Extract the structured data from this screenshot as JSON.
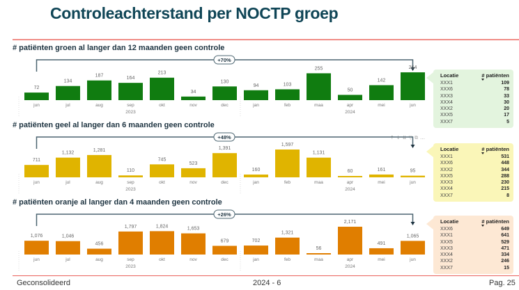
{
  "page": {
    "title": "Controleachterstand per NOCTP groep",
    "footer_left": "Geconsolideerd",
    "footer_center": "2024 - 6",
    "footer_right": "Pag. 25"
  },
  "toolbar_icons": [
    "arrow-up-icon",
    "arrow-down-icon",
    "expand-icon",
    "filter-icon",
    "focus-icon",
    "more-icon"
  ],
  "chart_data": [
    {
      "type": "bar",
      "title": "# patiënten groen al langer dan 12 maanden geen controle",
      "color": "#107c10",
      "categories": [
        "jun",
        "jul",
        "aug",
        "sep",
        "okt",
        "nov",
        "dec",
        "jan",
        "feb",
        "maa",
        "apr",
        "mei",
        "jun"
      ],
      "year_labels": [
        {
          "label": "2023",
          "under": "sep"
        },
        {
          "label": "2024",
          "under": "apr"
        }
      ],
      "values": [
        72,
        134,
        187,
        164,
        213,
        34,
        130,
        94,
        103,
        255,
        50,
        142,
        264
      ],
      "value_labels": [
        "72",
        "134",
        "187",
        "164",
        "213",
        "34",
        "130",
        "94",
        "103",
        "255",
        "50",
        "142",
        "264"
      ],
      "change_label": "+70%",
      "table": {
        "bg": "#e3f4de",
        "headers": [
          "Locatie",
          "# patiënten"
        ],
        "rows": [
          [
            "XXX1",
            "109"
          ],
          [
            "XXX6",
            "78"
          ],
          [
            "XXX3",
            "33"
          ],
          [
            "XXX4",
            "30"
          ],
          [
            "XXX2",
            "20"
          ],
          [
            "XXX5",
            "17"
          ],
          [
            "XXX7",
            "5"
          ]
        ]
      }
    },
    {
      "type": "bar",
      "title": "# patiënten geel al langer dan 6 maanden geen controle",
      "color": "#e0b400",
      "categories": [
        "jun",
        "jul",
        "aug",
        "sep",
        "okt",
        "nov",
        "dec",
        "jan",
        "feb",
        "maa",
        "apr",
        "mei",
        "jun"
      ],
      "year_labels": [
        {
          "label": "2023",
          "under": "sep"
        },
        {
          "label": "2024",
          "under": "apr"
        }
      ],
      "values": [
        711,
        1132,
        1281,
        110,
        745,
        523,
        1391,
        160,
        1597,
        1131,
        60,
        161,
        95
      ],
      "value_labels": [
        "711",
        "1,132",
        "1,281",
        "110",
        "745",
        "523",
        "1,391",
        "160",
        "1,597",
        "1,131",
        "60",
        "161",
        "95"
      ],
      "change_label": "+48%",
      "table": {
        "bg": "#faf6b8",
        "headers": [
          "Locatie",
          "# patiënten"
        ],
        "rows": [
          [
            "XXX1",
            "531"
          ],
          [
            "XXX6",
            "448"
          ],
          [
            "XXX2",
            "344"
          ],
          [
            "XXX5",
            "288"
          ],
          [
            "XXX3",
            "230"
          ],
          [
            "XXX4",
            "215"
          ],
          [
            "XXX7",
            "8"
          ]
        ]
      }
    },
    {
      "type": "bar",
      "title": "# patiënten oranje al langer dan 4 maanden geen controle",
      "color": "#e07e00",
      "categories": [
        "jun",
        "jul",
        "aug",
        "sep",
        "okt",
        "nov",
        "dec",
        "jan",
        "feb",
        "maa",
        "apr",
        "mei",
        "jun"
      ],
      "year_labels": [
        {
          "label": "2023",
          "under": "sep"
        },
        {
          "label": "2024",
          "under": "apr"
        }
      ],
      "values": [
        1076,
        1046,
        456,
        1797,
        1824,
        1653,
        679,
        702,
        1321,
        56,
        2171,
        491,
        1065
      ],
      "value_labels": [
        "1,076",
        "1,046",
        "456",
        "1,797",
        "1,824",
        "1,653",
        "679",
        "702",
        "1,321",
        "56",
        "2,171",
        "491",
        "1,065"
      ],
      "change_label": "+26%",
      "table": {
        "bg": "#fde8d4",
        "headers": [
          "Locatie",
          "# patiënten"
        ],
        "rows": [
          [
            "XXX6",
            "649"
          ],
          [
            "XXX1",
            "641"
          ],
          [
            "XXX5",
            "529"
          ],
          [
            "XXX3",
            "471"
          ],
          [
            "XXX4",
            "334"
          ],
          [
            "XXX2",
            "246"
          ],
          [
            "XXX7",
            "15"
          ]
        ]
      }
    }
  ]
}
